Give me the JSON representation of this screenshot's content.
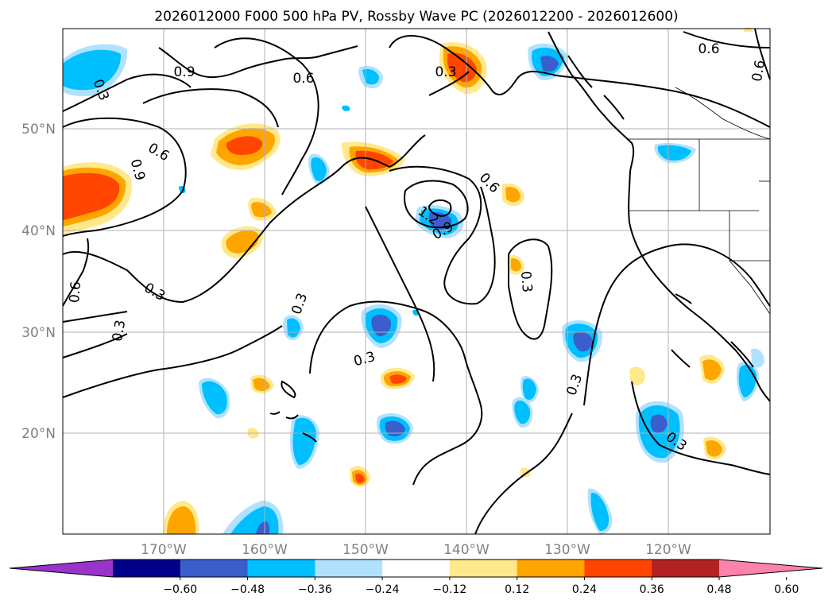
{
  "title": "2026012000 F000 500 hPa PV, Rossby Wave PC (2026012200 - 2026012600)",
  "map": {
    "lon_labels": [
      "170°W",
      "160°W",
      "150°W",
      "140°W",
      "130°W",
      "120°W"
    ],
    "lat_labels": [
      "50°N",
      "40°N",
      "30°N",
      "20°N"
    ]
  },
  "colorbar": {
    "tick_labels": [
      "−0.60",
      "−0.48",
      "−0.36",
      "−0.24",
      "−0.12",
      "0.12",
      "0.24",
      "0.36",
      "0.48",
      "0.60"
    ],
    "colors": [
      "#9933cc",
      "#00008b",
      "#3a5fcd",
      "#00bfff",
      "#b0e2ff",
      "#ffffff",
      "#ffe98a",
      "#ffa500",
      "#ff4500",
      "#b22222",
      "#ff82ab"
    ]
  },
  "contour_labels": {
    "a": "0.9",
    "b": "0.6",
    "c": "0.3",
    "d": "0.6",
    "e": "0.6",
    "f": "0.6",
    "g": "0.3",
    "h": "0.6",
    "i": "0.3",
    "j": "0.3",
    "k": "0.6",
    "l": "1.2",
    "m": "0.9",
    "n": "0.3",
    "o": "0.3",
    "p": "0.3",
    "q": "0.3",
    "r": "0.6",
    "s": "0.3"
  },
  "colors": {
    "positive_light": "#ffe98a",
    "positive_mid": "#ffa500",
    "positive_strong": "#ff4500",
    "negative_light": "#b0e2ff",
    "negative_mid": "#00bfff",
    "negative_strong": "#3a5fcd"
  }
}
